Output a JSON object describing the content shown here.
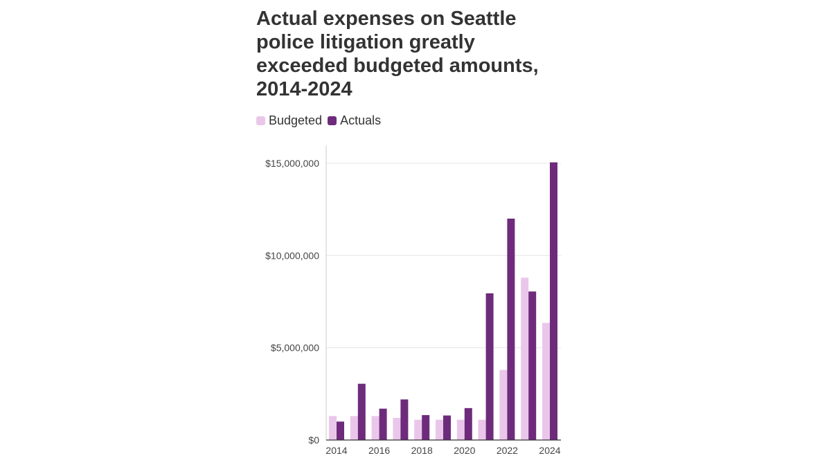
{
  "title": "Actual expenses on Seattle police litigation greatly exceeded budgeted amounts, 2014-2024",
  "chart_data": {
    "type": "bar",
    "title": "Actual expenses on Seattle police litigation greatly exceeded budgeted amounts, 2014-2024",
    "categories": [
      "2014",
      "2015",
      "2016",
      "2017",
      "2018",
      "2019",
      "2020",
      "2021",
      "2022",
      "2023",
      "2024"
    ],
    "x_tick_labels": [
      "2014",
      "2016",
      "2018",
      "2020",
      "2022",
      "2024"
    ],
    "series": [
      {
        "name": "Budgeted",
        "color": "#eac7ea",
        "values": [
          1300000,
          1300000,
          1300000,
          1200000,
          1100000,
          1100000,
          1100000,
          1100000,
          3800000,
          8800000,
          6350000
        ]
      },
      {
        "name": "Actuals",
        "color": "#6e2b7b",
        "values": [
          1000000,
          3050000,
          1700000,
          2200000,
          1350000,
          1330000,
          1730000,
          7950000,
          12000000,
          8050000,
          15050000
        ]
      }
    ],
    "y_ticks": [
      0,
      5000000,
      10000000,
      15000000
    ],
    "y_tick_labels": [
      "$0",
      "$5,000,000",
      "$10,000,000",
      "$15,000,000"
    ],
    "ylim": [
      0,
      16000000
    ],
    "grid": true,
    "legend_position": "top-left",
    "xlabel": "",
    "ylabel": ""
  }
}
